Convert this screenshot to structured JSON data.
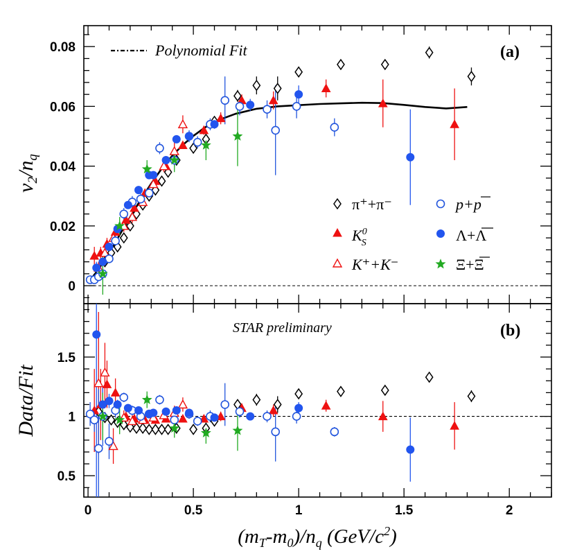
{
  "colors": {
    "pion": "#000000",
    "kaon": "#ee1111",
    "proton": "#2255dd",
    "lambda": "#2255ee",
    "xi": "#22aa22",
    "fit": "#000000"
  },
  "chart_data": [
    {
      "panel": "(a)",
      "type": "scatter",
      "xlabel": "(m_T-m_0)/n_q (GeV/c^2)",
      "ylabel": "v_2/n_q",
      "xlim": [
        -0.02,
        2.2
      ],
      "ylim": [
        -0.006,
        0.087
      ],
      "xticks": [
        "0",
        "0.5",
        "1",
        "1.5",
        "2"
      ],
      "yticks": [
        "0",
        "0.02",
        "0.04",
        "0.06",
        "0.08"
      ],
      "fit_label": "Polynomial Fit",
      "reference_line": 0,
      "fit_curve": {
        "x": [
          0.0,
          0.05,
          0.1,
          0.15,
          0.2,
          0.25,
          0.3,
          0.35,
          0.4,
          0.45,
          0.5,
          0.55,
          0.6,
          0.7,
          0.8,
          0.9,
          1.0,
          1.1,
          1.2,
          1.3,
          1.4,
          1.5,
          1.6,
          1.7,
          1.8
        ],
        "y": [
          0.001,
          0.0055,
          0.011,
          0.017,
          0.023,
          0.0288,
          0.0342,
          0.0392,
          0.0435,
          0.0471,
          0.0501,
          0.0527,
          0.0549,
          0.0575,
          0.0592,
          0.06,
          0.0604,
          0.0608,
          0.061,
          0.0612,
          0.0611,
          0.0605,
          0.0598,
          0.0593,
          0.0598
        ]
      },
      "series": [
        {
          "name": "π⁺+π⁻",
          "marker": "diamond-open",
          "color": "#000000",
          "x": [
            0.05,
            0.08,
            0.11,
            0.14,
            0.17,
            0.2,
            0.23,
            0.26,
            0.29,
            0.32,
            0.35,
            0.38,
            0.42,
            0.5,
            0.56,
            0.6,
            0.71,
            0.8,
            0.9,
            1.0,
            1.2,
            1.41,
            1.62,
            1.82
          ],
          "y": [
            0.005,
            0.008,
            0.011,
            0.013,
            0.016,
            0.02,
            0.024,
            0.027,
            0.03,
            0.032,
            0.035,
            0.038,
            0.042,
            0.046,
            0.049,
            0.055,
            0.0635,
            0.067,
            0.066,
            0.0715,
            0.074,
            0.074,
            0.078,
            0.07
          ],
          "err": [
            0.001,
            0.001,
            0.001,
            0.001,
            0.001,
            0.001,
            0.001,
            0.001,
            0.001,
            0.001,
            0.001,
            0.001,
            0.0012,
            0.0012,
            0.0015,
            0.0015,
            0.002,
            0.003,
            0.004,
            0.0015,
            0.0012,
            0.0012,
            0.002,
            0.003
          ]
        },
        {
          "name": "K⁰S",
          "marker": "triangle-filled",
          "color": "#ee1111",
          "x": [
            0.03,
            0.06,
            0.09,
            0.13,
            0.18,
            0.22,
            0.27,
            0.32,
            0.37,
            0.45,
            0.55,
            0.63,
            0.73,
            0.88,
            1.13,
            1.4,
            1.74
          ],
          "y": [
            0.01,
            0.011,
            0.014,
            0.018,
            0.022,
            0.026,
            0.031,
            0.035,
            0.04,
            0.047,
            0.052,
            0.056,
            0.062,
            0.062,
            0.066,
            0.061,
            0.054
          ],
          "err": [
            0.003,
            0.002,
            0.002,
            0.002,
            0.001,
            0.001,
            0.001,
            0.001,
            0.001,
            0.0012,
            0.0015,
            0.002,
            0.002,
            0.003,
            0.003,
            0.008,
            0.012
          ]
        },
        {
          "name": "K⁺+K⁻",
          "marker": "triangle-open",
          "color": "#ee1111",
          "x": [
            0.05,
            0.08,
            0.12,
            0.17,
            0.21,
            0.26,
            0.31,
            0.36,
            0.41,
            0.45
          ],
          "y": [
            0.006,
            0.011,
            0.016,
            0.02,
            0.023,
            0.028,
            0.034,
            0.04,
            0.045,
            0.054
          ],
          "err": [
            0.002,
            0.002,
            0.002,
            0.002,
            0.002,
            0.002,
            0.002,
            0.002,
            0.003,
            0.003
          ]
        },
        {
          "name": "p+p̄",
          "marker": "circle-open",
          "color": "#2255dd",
          "x": [
            0.01,
            0.03,
            0.05,
            0.07,
            0.1,
            0.13,
            0.17,
            0.21,
            0.25,
            0.29,
            0.34,
            0.41,
            0.48,
            0.52,
            0.58,
            0.65,
            0.72,
            0.85,
            0.89,
            0.99,
            1.17
          ],
          "y": [
            0.002,
            0.002,
            0.003,
            0.004,
            0.009,
            0.015,
            0.024,
            0.028,
            0.029,
            0.031,
            0.046,
            0.042,
            0.05,
            0.048,
            0.054,
            0.062,
            0.06,
            0.059,
            0.052,
            0.06,
            0.053
          ],
          "err": [
            0.001,
            0.001,
            0.001,
            0.001,
            0.001,
            0.002,
            0.002,
            0.002,
            0.002,
            0.002,
            0.002,
            0.002,
            0.002,
            0.002,
            0.002,
            0.008,
            0.003,
            0.003,
            0.015,
            0.004,
            0.003
          ]
        },
        {
          "name": "Λ+Λ̄",
          "marker": "circle-filled",
          "color": "#2255ee",
          "x": [
            0.04,
            0.07,
            0.1,
            0.14,
            0.19,
            0.24,
            0.29,
            0.31,
            0.37,
            0.42,
            0.48,
            0.6,
            0.77,
            1.0,
            1.53
          ],
          "y": [
            0.006,
            0.008,
            0.013,
            0.019,
            0.027,
            0.032,
            0.037,
            0.037,
            0.042,
            0.049,
            0.05,
            0.054,
            0.0605,
            0.064,
            0.043
          ],
          "err": [
            0.002,
            0.002,
            0.001,
            0.001,
            0.001,
            0.001,
            0.001,
            0.001,
            0.001,
            0.001,
            0.001,
            0.0015,
            0.002,
            0.003,
            0.016
          ]
        },
        {
          "name": "Ξ+Ξ̄",
          "marker": "star",
          "color": "#22aa22",
          "x": [
            0.07,
            0.15,
            0.28,
            0.41,
            0.56,
            0.71
          ],
          "y": [
            0.004,
            0.02,
            0.039,
            0.042,
            0.047,
            0.05
          ],
          "err": [
            0.007,
            0.003,
            0.003,
            0.004,
            0.005,
            0.01
          ]
        }
      ]
    },
    {
      "panel": "(b)",
      "type": "scatter",
      "xlabel": "(m_T-m_0)/n_q (GeV/c^2)",
      "ylabel": "Data/Fit",
      "xlim": [
        -0.02,
        2.2
      ],
      "ylim": [
        0.32,
        1.95
      ],
      "xticks": [
        "0",
        "0.5",
        "1",
        "1.5",
        "2"
      ],
      "yticks": [
        "0.5",
        "1",
        "1.5"
      ],
      "annotation": "STAR preliminary",
      "reference_line": 1,
      "series": [
        {
          "name": "π⁺+π⁻",
          "marker": "diamond-open",
          "color": "#000000",
          "x": [
            0.05,
            0.08,
            0.11,
            0.14,
            0.17,
            0.2,
            0.23,
            0.26,
            0.29,
            0.32,
            0.35,
            0.38,
            0.42,
            0.5,
            0.56,
            0.6,
            0.71,
            0.8,
            0.9,
            1.0,
            1.2,
            1.41,
            1.62,
            1.82
          ],
          "y": [
            1.04,
            0.99,
            0.97,
            0.95,
            0.93,
            0.91,
            0.9,
            0.9,
            0.89,
            0.89,
            0.89,
            0.89,
            0.9,
            0.89,
            0.9,
            0.96,
            1.1,
            1.14,
            1.1,
            1.19,
            1.21,
            1.22,
            1.33,
            1.17
          ],
          "err": [
            0.05,
            0.03,
            0.02,
            0.02,
            0.02,
            0.02,
            0.02,
            0.02,
            0.02,
            0.02,
            0.02,
            0.02,
            0.02,
            0.02,
            0.02,
            0.02,
            0.03,
            0.05,
            0.07,
            0.03,
            0.02,
            0.02,
            0.03,
            0.05
          ]
        },
        {
          "name": "K⁰S",
          "marker": "triangle-filled",
          "color": "#ee1111",
          "x": [
            0.03,
            0.06,
            0.09,
            0.13,
            0.18,
            0.22,
            0.27,
            0.32,
            0.37,
            0.45,
            0.55,
            0.63,
            0.73,
            0.88,
            1.13,
            1.4,
            1.74
          ],
          "y": [
            1.05,
            1.1,
            1.27,
            1.2,
            1.0,
            0.98,
            0.97,
            0.97,
            0.98,
            0.98,
            0.98,
            1.0,
            1.07,
            1.05,
            1.09,
            1.0,
            0.92
          ],
          "err": [
            0.35,
            0.3,
            0.2,
            0.12,
            0.05,
            0.04,
            0.03,
            0.03,
            0.03,
            0.03,
            0.03,
            0.04,
            0.04,
            0.05,
            0.05,
            0.13,
            0.2
          ]
        },
        {
          "name": "K⁺+K⁻",
          "marker": "triangle-open",
          "color": "#ee1111",
          "x": [
            0.05,
            0.08,
            0.12,
            0.17,
            0.21,
            0.26,
            0.31,
            0.36,
            0.41,
            0.45
          ],
          "y": [
            1.28,
            1.37,
            0.75,
            0.99,
            0.96,
            0.97,
            0.99,
            1.01,
            1.03,
            1.1
          ],
          "err": [
            0.6,
            0.25,
            0.15,
            0.06,
            0.05,
            0.05,
            0.05,
            0.05,
            0.06,
            0.06
          ]
        },
        {
          "name": "p+p̄",
          "marker": "circle-open",
          "color": "#2255dd",
          "x": [
            0.01,
            0.03,
            0.05,
            0.07,
            0.1,
            0.13,
            0.17,
            0.21,
            0.25,
            0.29,
            0.34,
            0.41,
            0.48,
            0.52,
            0.58,
            0.65,
            0.72,
            0.85,
            0.89,
            0.99,
            1.17
          ],
          "y": [
            1.02,
            0.97,
            0.73,
            1.0,
            0.79,
            1.05,
            1.16,
            1.05,
            1.0,
            1.02,
            1.14,
            0.97,
            1.02,
            0.96,
            1.0,
            1.1,
            1.04,
            1.0,
            0.87,
            1.0,
            0.87
          ],
          "err": [
            0.1,
            0.1,
            0.5,
            0.25,
            0.15,
            0.06,
            0.04,
            0.04,
            0.03,
            0.03,
            0.04,
            0.04,
            0.04,
            0.04,
            0.05,
            0.18,
            0.05,
            0.05,
            0.25,
            0.06,
            0.04
          ]
        },
        {
          "name": "Λ+Λ̄",
          "marker": "circle-filled",
          "color": "#2255ee",
          "x": [
            0.04,
            0.07,
            0.1,
            0.14,
            0.19,
            0.24,
            0.29,
            0.31,
            0.37,
            0.42,
            0.48,
            0.6,
            0.77,
            1.0,
            1.53
          ],
          "y": [
            1.69,
            1.1,
            1.13,
            1.1,
            1.07,
            1.05,
            1.02,
            1.03,
            1.04,
            1.05,
            1.03,
            0.99,
            1.0,
            1.07,
            0.72
          ],
          "err": [
            1.4,
            0.15,
            0.06,
            0.04,
            0.03,
            0.02,
            0.02,
            0.02,
            0.02,
            0.02,
            0.02,
            0.02,
            0.03,
            0.05,
            0.27
          ]
        },
        {
          "name": "Ξ+Ξ̄",
          "marker": "star",
          "color": "#22aa22",
          "x": [
            0.07,
            0.15,
            0.28,
            0.41,
            0.56,
            0.71
          ],
          "y": [
            1.0,
            0.97,
            1.14,
            0.9,
            0.86,
            0.88
          ],
          "err": [
            0.2,
            0.12,
            0.07,
            0.08,
            0.09,
            0.17
          ]
        }
      ]
    }
  ],
  "legend": {
    "fit_label": "Polynomial Fit",
    "pion_label": "π⁺+π⁻",
    "kshort_label": "K",
    "kshort_sub": "S",
    "kshort_sup": "0",
    "kcharged_label": "K⁺+K⁻",
    "proton_label": "p+p",
    "lambda_label": "Λ+Λ",
    "xi_label": "Ξ+Ξ"
  },
  "axes": {
    "top_ylabel_v": "v",
    "top_ylabel_sub2": "2",
    "top_ylabel_slash": "/n",
    "top_ylabel_subq": "q",
    "bottom_ylabel": "Data/Fit",
    "xlabel_parts": [
      "(m",
      "T",
      "-m",
      "0",
      ")/n",
      "q",
      " (GeV/c",
      "2",
      ")"
    ]
  }
}
